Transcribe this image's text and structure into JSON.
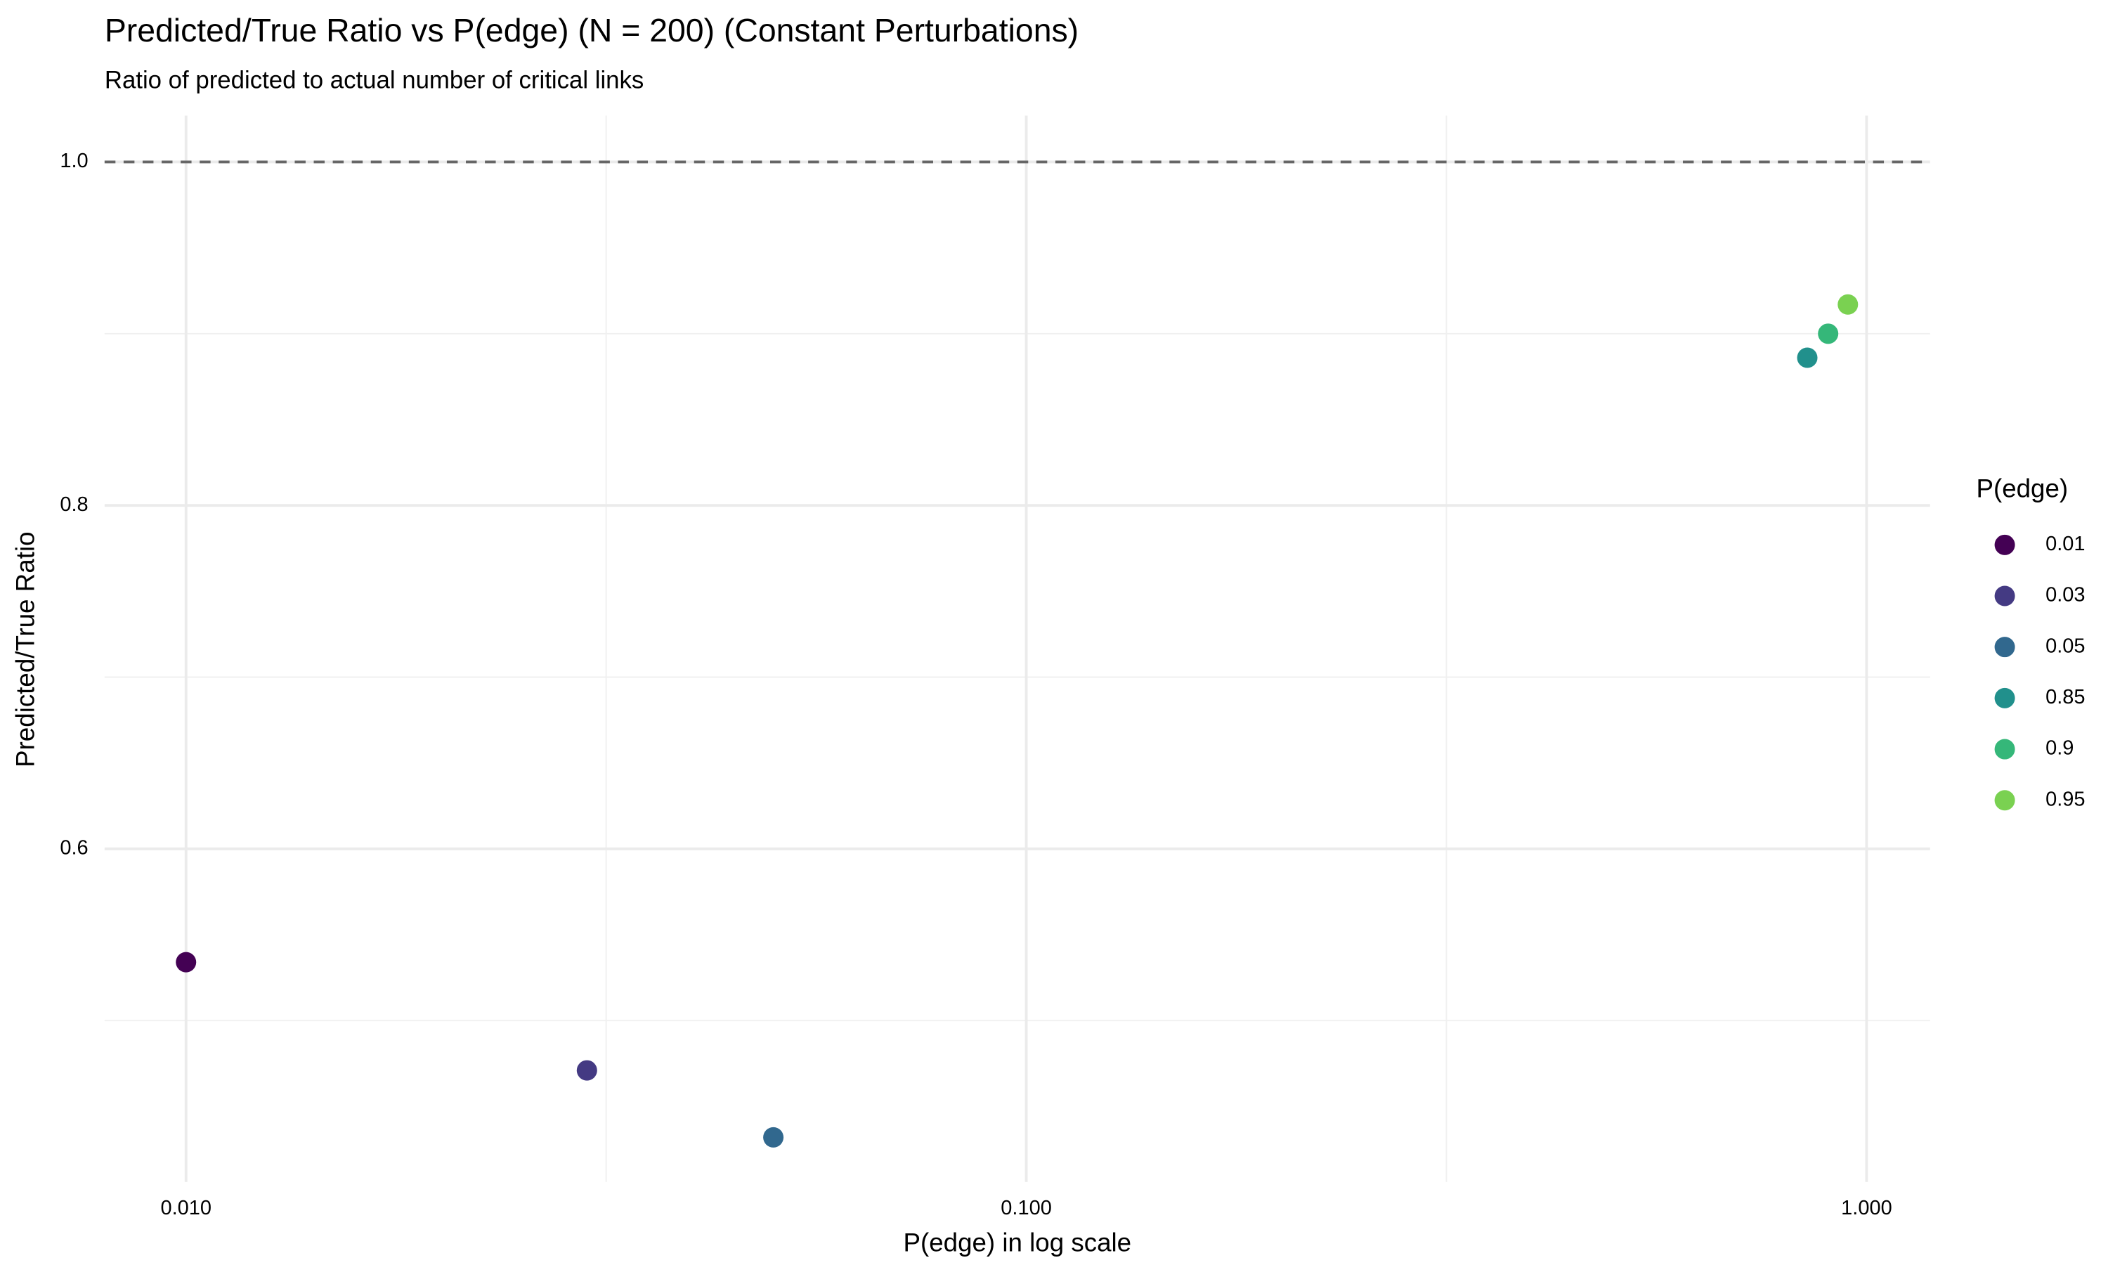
{
  "chart_data": {
    "type": "scatter",
    "title": "Predicted/True Ratio vs P(edge) (N = 200) (Constant Perturbations)",
    "subtitle": "Ratio of predicted to actual number of critical links",
    "x_label": "P(edge) in log scale",
    "y_label": "Predicted/True Ratio",
    "legend_title": "P(edge)",
    "legend_position": "right",
    "x_log": true,
    "grid": true,
    "reference_line": {
      "value": 1,
      "style": "dashed",
      "color": "#666666"
    },
    "xlim": [
      0.008,
      1.19
    ],
    "ylim": [
      0.406,
      1.027
    ],
    "xticks": [
      {
        "value": 0.01,
        "label": "0.010"
      },
      {
        "value": 0.1,
        "label": "0.100"
      },
      {
        "value": 1,
        "label": "1.000"
      }
    ],
    "yticks": [
      0.6,
      0.8,
      {
        "value": 1,
        "label": "1.0"
      }
    ],
    "series": [
      {
        "name": "0.01",
        "color": "#440154",
        "x": [
          0.01
        ],
        "values": [
          0.534
        ]
      },
      {
        "name": "0.03",
        "color": "#443A83",
        "x": [
          0.03
        ],
        "values": [
          0.471
        ]
      },
      {
        "name": "0.05",
        "color": "#31688E",
        "x": [
          0.05
        ],
        "values": [
          0.432
        ]
      },
      {
        "name": "0.85",
        "color": "#21908C",
        "x": [
          0.85
        ],
        "values": [
          0.886
        ]
      },
      {
        "name": "0.9",
        "color": "#35B779",
        "x": [
          0.9
        ],
        "values": [
          0.9
        ]
      },
      {
        "name": "0.95",
        "color": "#7AD151",
        "x": [
          0.95
        ],
        "values": [
          0.917
        ]
      }
    ]
  }
}
